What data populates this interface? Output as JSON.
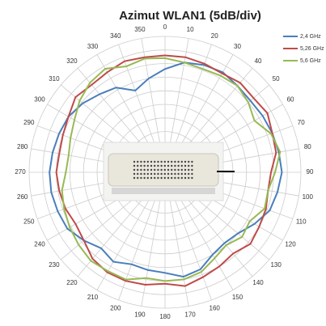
{
  "chart_data": {
    "type": "polar",
    "title": "Azimut  WLAN1 (5dB/div)",
    "theta": [
      0,
      10,
      20,
      30,
      40,
      50,
      60,
      70,
      80,
      90,
      100,
      110,
      120,
      130,
      140,
      150,
      160,
      170,
      180,
      190,
      200,
      210,
      220,
      230,
      240,
      250,
      260,
      270,
      280,
      290,
      300,
      310,
      320,
      330,
      340,
      350
    ],
    "rlim": [
      0,
      10
    ],
    "rticks": [
      1,
      2,
      3,
      4,
      5,
      6,
      7,
      8,
      9,
      10
    ],
    "grid": true,
    "direction": "clockwise",
    "zero": "top",
    "legend": "top-right",
    "series": [
      {
        "name": "2,4 GHz",
        "color": "#4a7ebb",
        "values": [
          7.6,
          8.2,
          8.4,
          8.5,
          8.3,
          8.2,
          8.3,
          8.4,
          8.5,
          8.6,
          8.4,
          8.2,
          7.6,
          7.0,
          6.8,
          7.0,
          7.6,
          7.8,
          7.4,
          7.3,
          7.2,
          7.6,
          7.3,
          7.8,
          8.3,
          8.4,
          8.5,
          8.5,
          8.4,
          8.3,
          8.2,
          7.9,
          7.5,
          7.2,
          6.4,
          7.0
        ]
      },
      {
        "name": "5,26 GHz",
        "color": "#be4b48",
        "values": [
          8.6,
          8.6,
          8.5,
          8.4,
          8.6,
          8.5,
          8.7,
          8.4,
          8.3,
          7.8,
          7.7,
          7.9,
          8.0,
          8.2,
          7.8,
          8.0,
          8.2,
          8.5,
          8.2,
          8.4,
          8.5,
          8.5,
          8.3,
          7.8,
          7.6,
          7.8,
          7.9,
          8.0,
          7.9,
          8.0,
          8.2,
          8.6,
          8.4,
          8.5,
          8.7,
          8.6
        ]
      },
      {
        "name": "5,6 GHz",
        "color": "#98b954",
        "values": [
          8.4,
          8.2,
          8.1,
          8.2,
          8.3,
          8.0,
          7.6,
          8.3,
          8.6,
          8.1,
          7.7,
          7.8,
          7.2,
          7.4,
          7.0,
          7.3,
          7.8,
          8.0,
          8.0,
          7.9,
          8.4,
          8.4,
          8.5,
          8.3,
          8.1,
          7.9,
          7.7,
          7.3,
          7.2,
          7.4,
          7.7,
          8.2,
          8.6,
          8.8,
          8.3,
          8.5
        ]
      }
    ]
  }
}
